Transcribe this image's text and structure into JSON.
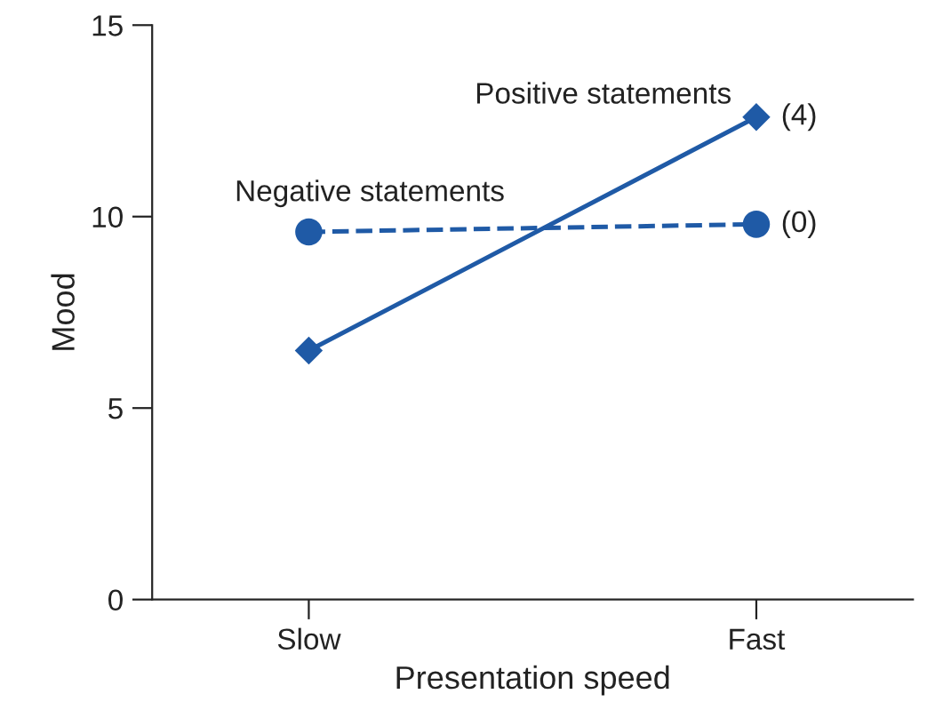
{
  "chart_data": {
    "type": "line",
    "xlabel": "Presentation speed",
    "ylabel": "Mood",
    "categories": [
      "Slow",
      "Fast"
    ],
    "series": [
      {
        "name": "Positive statements",
        "color": "#1f5aa6",
        "values": [
          6.5,
          12.6
        ],
        "marker": "diamond",
        "line_style": "solid"
      },
      {
        "name": "Negative statements",
        "color": "#1f5aa6",
        "values": [
          9.6,
          9.8
        ],
        "marker": "circle",
        "line_style": "dashed"
      }
    ],
    "annotations": [
      {
        "text": "(4)",
        "x": "Fast",
        "y": 12.6
      },
      {
        "text": "(0)",
        "x": "Fast",
        "y": 9.8
      }
    ],
    "ylim": [
      0,
      15
    ],
    "yticks": [
      0,
      5,
      10,
      15
    ],
    "grid": false,
    "legend": false
  }
}
